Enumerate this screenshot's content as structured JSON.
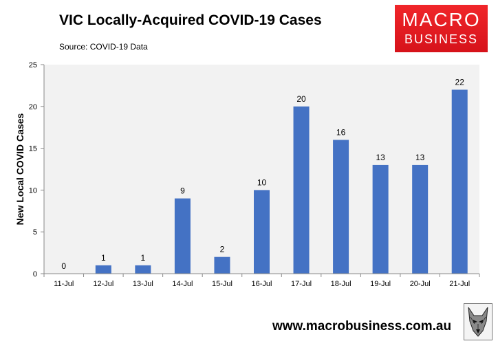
{
  "header": {
    "title": "VIC Locally-Acquired COVID-19 Cases",
    "source": "Source: COVID-19 Data"
  },
  "logo": {
    "line1": "MACRO",
    "line2": "BUSINESS",
    "color": "#e0171f"
  },
  "footer": {
    "website": "www.macrobusiness.com.au",
    "emblem": "wolf-icon"
  },
  "chart_data": {
    "type": "bar",
    "title": "VIC Locally-Acquired COVID-19 Cases",
    "xlabel": "",
    "ylabel": "New Local COVID Cases",
    "categories": [
      "11-Jul",
      "12-Jul",
      "13-Jul",
      "14-Jul",
      "15-Jul",
      "16-Jul",
      "17-Jul",
      "18-Jul",
      "19-Jul",
      "20-Jul",
      "21-Jul"
    ],
    "values": [
      0,
      1,
      1,
      9,
      2,
      10,
      20,
      16,
      13,
      13,
      22
    ],
    "data_labels": [
      "0",
      "1",
      "1",
      "9",
      "2",
      "10",
      "20",
      "16",
      "13",
      "13",
      "22"
    ],
    "ylim": [
      0,
      25
    ],
    "yticks": [
      0,
      5,
      10,
      15,
      20,
      25
    ],
    "ytick_labels": [
      "0",
      "5",
      "10",
      "15",
      "20",
      "25"
    ],
    "grid": false,
    "legend": "none",
    "bar_color": "#4472c4",
    "plot_background": "#f2f2f2"
  }
}
